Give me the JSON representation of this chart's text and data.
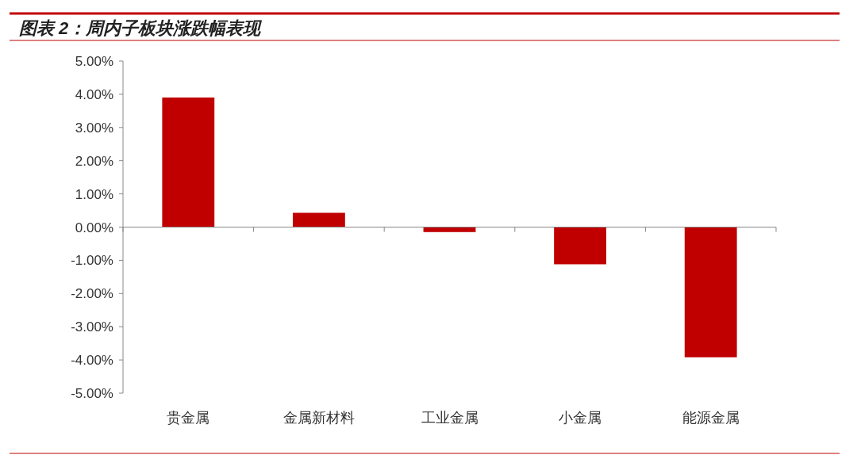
{
  "chart_data": {
    "type": "bar",
    "title": "图表 2：周内子板块涨跌幅表现",
    "categories": [
      "贵金属",
      "金属新材料",
      "工业金属",
      "小金属",
      "能源金属"
    ],
    "values": [
      3.9,
      0.43,
      -0.15,
      -1.12,
      -3.92
    ],
    "color": "#c00000",
    "ylim": [
      -5,
      5
    ],
    "yticks": [
      {
        "value": -5,
        "label": "-5.00%"
      },
      {
        "value": -4,
        "label": "-4.00%"
      },
      {
        "value": -3,
        "label": "-3.00%"
      },
      {
        "value": -2,
        "label": "-2.00%"
      },
      {
        "value": -1,
        "label": "-1.00%"
      },
      {
        "value": 0,
        "label": "0.00%"
      },
      {
        "value": 1,
        "label": "1.00%"
      },
      {
        "value": 2,
        "label": "2.00%"
      },
      {
        "value": 3,
        "label": "3.00%"
      },
      {
        "value": 4,
        "label": "4.00%"
      },
      {
        "value": 5,
        "label": "5.00%"
      }
    ]
  }
}
